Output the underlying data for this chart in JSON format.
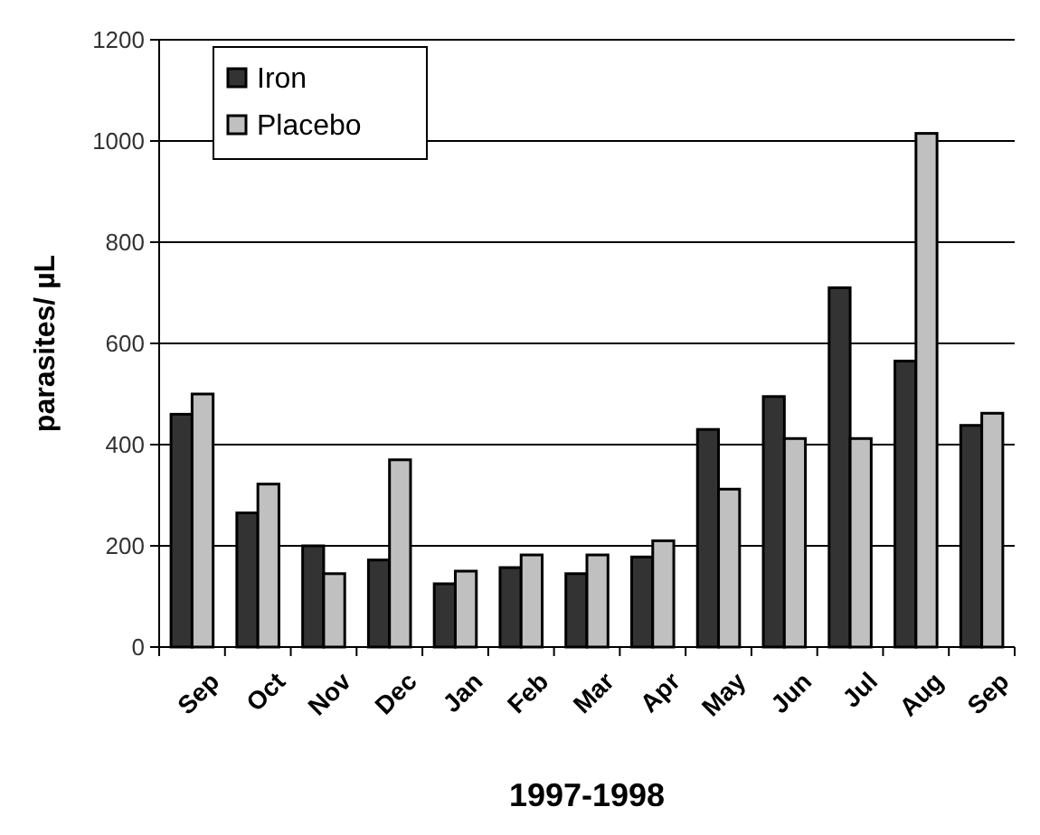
{
  "chart_data": {
    "type": "bar",
    "xlabel": "1997-1998",
    "ylabel": "parasites/ µL",
    "categories": [
      "Sep",
      "Oct",
      "Nov",
      "Dec",
      "Jan",
      "Feb",
      "Mar",
      "Apr",
      "May",
      "Jun",
      "Jul",
      "Aug",
      "Sep"
    ],
    "series": [
      {
        "name": "Iron",
        "color": "#333333",
        "values": [
          460,
          265,
          200,
          172,
          125,
          157,
          145,
          178,
          430,
          495,
          710,
          565,
          438
        ]
      },
      {
        "name": "Placebo",
        "color": "#c0c0c0",
        "values": [
          500,
          322,
          145,
          370,
          150,
          182,
          182,
          210,
          312,
          412,
          412,
          1015,
          462
        ]
      }
    ],
    "ylim": [
      0,
      1200
    ],
    "yticks": [
      0,
      200,
      400,
      600,
      800,
      1000,
      1200
    ],
    "grid": "y",
    "legend": "top left"
  }
}
